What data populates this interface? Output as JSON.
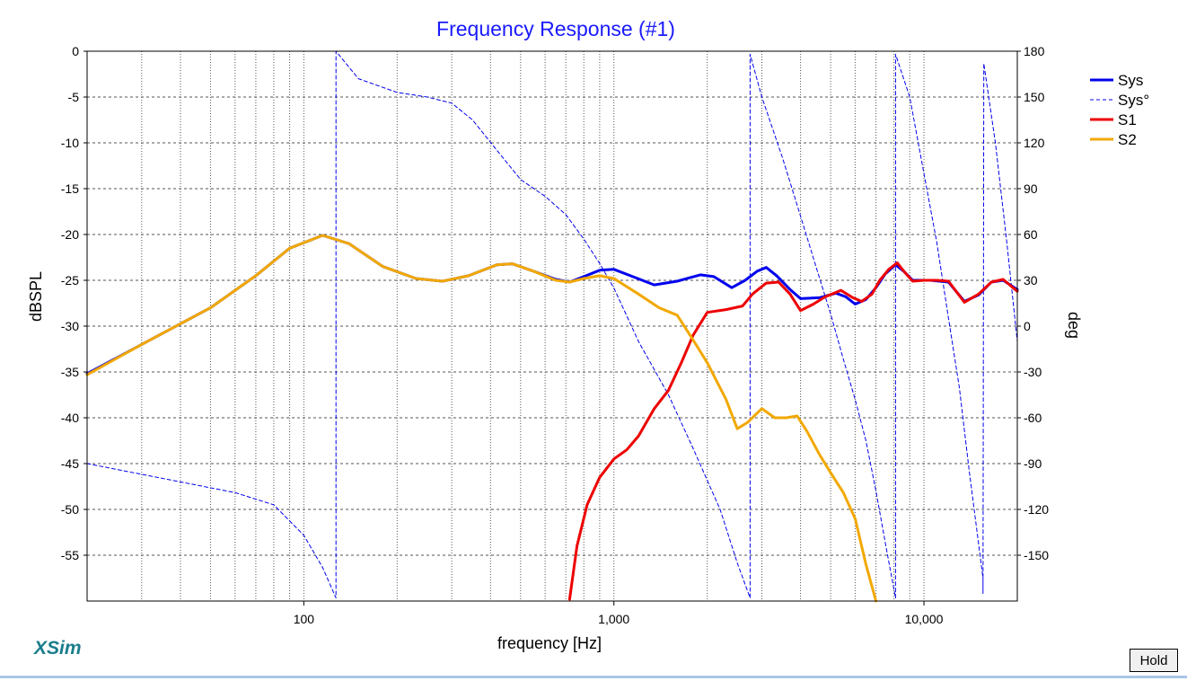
{
  "app": {
    "brand": "XSim",
    "hold_label": "Hold",
    "colors": {
      "brand": "#1a7d8c",
      "title": "#1a1aff"
    }
  },
  "chart_data": {
    "type": "line",
    "title": "Frequency Response (#1)",
    "xlabel": "frequency [Hz]",
    "ylabel": "dBSPL",
    "y2label": "deg",
    "xscale": "log",
    "xlim": [
      20,
      20000
    ],
    "ylim": [
      -60,
      0
    ],
    "y2lim": [
      -180,
      180
    ],
    "xticks": [
      {
        "v": 100,
        "label": "100"
      },
      {
        "v": 1000,
        "label": "1,000"
      },
      {
        "v": 10000,
        "label": "10,000"
      }
    ],
    "yticks": [
      0,
      -5,
      -10,
      -15,
      -20,
      -25,
      -30,
      -35,
      -40,
      -45,
      -50,
      -55
    ],
    "y2ticks": [
      180,
      150,
      120,
      90,
      60,
      30,
      0,
      -30,
      -60,
      -90,
      -120,
      -150
    ],
    "grid": true,
    "legend_position": "right",
    "series": [
      {
        "name": "Sys",
        "axis": "left",
        "color": "#0000ee",
        "width": 3,
        "dash": false,
        "points": [
          [
            20,
            -35.2
          ],
          [
            30,
            -32
          ],
          [
            50,
            -28
          ],
          [
            70,
            -24.5
          ],
          [
            90,
            -21.5
          ],
          [
            115,
            -20.1
          ],
          [
            140,
            -21
          ],
          [
            180,
            -23.5
          ],
          [
            230,
            -24.8
          ],
          [
            280,
            -25.1
          ],
          [
            340,
            -24.5
          ],
          [
            420,
            -23.3
          ],
          [
            470,
            -23.2
          ],
          [
            550,
            -24
          ],
          [
            650,
            -24.9
          ],
          [
            720,
            -25.2
          ],
          [
            800,
            -24.6
          ],
          [
            900,
            -23.9
          ],
          [
            1000,
            -23.8
          ],
          [
            1150,
            -24.6
          ],
          [
            1350,
            -25.5
          ],
          [
            1600,
            -25.1
          ],
          [
            1900,
            -24.4
          ],
          [
            2100,
            -24.6
          ],
          [
            2400,
            -25.8
          ],
          [
            2650,
            -25
          ],
          [
            2900,
            -24
          ],
          [
            3100,
            -23.6
          ],
          [
            3350,
            -24.5
          ],
          [
            3700,
            -26
          ],
          [
            4000,
            -27
          ],
          [
            4600,
            -26.9
          ],
          [
            5200,
            -26.4
          ],
          [
            5600,
            -26.8
          ],
          [
            6000,
            -27.6
          ],
          [
            6500,
            -27.1
          ],
          [
            7000,
            -25.8
          ],
          [
            7500,
            -24.3
          ],
          [
            8100,
            -23.3
          ],
          [
            8600,
            -24
          ],
          [
            9200,
            -25
          ],
          [
            10500,
            -25
          ],
          [
            12000,
            -25.2
          ],
          [
            13500,
            -27.3
          ],
          [
            15000,
            -26.6
          ],
          [
            16500,
            -25.2
          ],
          [
            18000,
            -25
          ],
          [
            20000,
            -26
          ]
        ]
      },
      {
        "name": "Sys°",
        "axis": "right",
        "color": "#0000ee",
        "width": 1,
        "dash": true,
        "points": [
          [
            20,
            -90
          ],
          [
            40,
            -102
          ],
          [
            60,
            -109
          ],
          [
            80,
            -117
          ],
          [
            100,
            -137
          ],
          [
            115,
            -158
          ],
          [
            127,
            -178
          ],
          [
            127,
            180
          ],
          [
            150,
            162
          ],
          [
            200,
            153
          ],
          [
            250,
            150
          ],
          [
            300,
            146
          ],
          [
            350,
            135
          ],
          [
            420,
            115
          ],
          [
            500,
            96
          ],
          [
            600,
            85
          ],
          [
            700,
            73
          ],
          [
            800,
            57
          ],
          [
            900,
            41
          ],
          [
            1000,
            25
          ],
          [
            1200,
            -10
          ],
          [
            1500,
            -45
          ],
          [
            1800,
            -80
          ],
          [
            2200,
            -120
          ],
          [
            2500,
            -155
          ],
          [
            2750,
            -178
          ],
          [
            2750,
            178
          ],
          [
            3000,
            150
          ],
          [
            3500,
            110
          ],
          [
            4000,
            72
          ],
          [
            4500,
            38
          ],
          [
            5000,
            8
          ],
          [
            5500,
            -22
          ],
          [
            6000,
            -48
          ],
          [
            6500,
            -75
          ],
          [
            7000,
            -108
          ],
          [
            7600,
            -148
          ],
          [
            8100,
            -178
          ],
          [
            8100,
            178
          ],
          [
            9000,
            150
          ],
          [
            10000,
            100
          ],
          [
            11000,
            55
          ],
          [
            12000,
            5
          ],
          [
            13000,
            -40
          ],
          [
            14000,
            -95
          ],
          [
            15500,
            -165
          ],
          [
            15500,
            -175
          ],
          [
            15600,
            172
          ],
          [
            17000,
            120
          ],
          [
            18500,
            55
          ],
          [
            20000,
            -10
          ]
        ]
      },
      {
        "name": "S1",
        "axis": "left",
        "color": "#ee0000",
        "width": 3,
        "dash": false,
        "points": [
          [
            720,
            -59.8
          ],
          [
            760,
            -54
          ],
          [
            820,
            -49.5
          ],
          [
            900,
            -46.5
          ],
          [
            1000,
            -44.5
          ],
          [
            1100,
            -43.5
          ],
          [
            1200,
            -42
          ],
          [
            1350,
            -39
          ],
          [
            1500,
            -37
          ],
          [
            1650,
            -34
          ],
          [
            1800,
            -31
          ],
          [
            2000,
            -28.5
          ],
          [
            2300,
            -28.2
          ],
          [
            2600,
            -27.8
          ],
          [
            2800,
            -26.5
          ],
          [
            3100,
            -25.3
          ],
          [
            3400,
            -25.2
          ],
          [
            3700,
            -26.5
          ],
          [
            4000,
            -28.3
          ],
          [
            4400,
            -27.6
          ],
          [
            4800,
            -26.8
          ],
          [
            5400,
            -26.1
          ],
          [
            5900,
            -26.9
          ],
          [
            6300,
            -27.3
          ],
          [
            6800,
            -26.5
          ],
          [
            7200,
            -25
          ],
          [
            7700,
            -23.8
          ],
          [
            8200,
            -23.1
          ],
          [
            8700,
            -24.2
          ],
          [
            9200,
            -25.1
          ],
          [
            10000,
            -25
          ],
          [
            11000,
            -25
          ],
          [
            12000,
            -25.1
          ],
          [
            13500,
            -27.4
          ],
          [
            15000,
            -26.5
          ],
          [
            16500,
            -25.2
          ],
          [
            18000,
            -24.9
          ],
          [
            20000,
            -26.2
          ]
        ]
      },
      {
        "name": "S2",
        "axis": "left",
        "color": "#f2a800",
        "width": 3,
        "dash": false,
        "points": [
          [
            20,
            -35.3
          ],
          [
            30,
            -32
          ],
          [
            50,
            -28
          ],
          [
            70,
            -24.5
          ],
          [
            90,
            -21.5
          ],
          [
            115,
            -20.1
          ],
          [
            140,
            -21
          ],
          [
            180,
            -23.5
          ],
          [
            230,
            -24.8
          ],
          [
            280,
            -25.1
          ],
          [
            340,
            -24.5
          ],
          [
            420,
            -23.3
          ],
          [
            470,
            -23.2
          ],
          [
            550,
            -24
          ],
          [
            650,
            -25
          ],
          [
            720,
            -25.2
          ],
          [
            800,
            -24.8
          ],
          [
            900,
            -24.5
          ],
          [
            1000,
            -24.8
          ],
          [
            1200,
            -26.5
          ],
          [
            1400,
            -28
          ],
          [
            1600,
            -28.8
          ],
          [
            1800,
            -31.5
          ],
          [
            2000,
            -34
          ],
          [
            2300,
            -38
          ],
          [
            2500,
            -41.2
          ],
          [
            2700,
            -40.5
          ],
          [
            3000,
            -39
          ],
          [
            3300,
            -40
          ],
          [
            3600,
            -40
          ],
          [
            3900,
            -39.8
          ],
          [
            4200,
            -41.5
          ],
          [
            4600,
            -44
          ],
          [
            5000,
            -46
          ],
          [
            5500,
            -48.2
          ],
          [
            6000,
            -51
          ],
          [
            6500,
            -56
          ],
          [
            7000,
            -60
          ]
        ]
      }
    ]
  }
}
